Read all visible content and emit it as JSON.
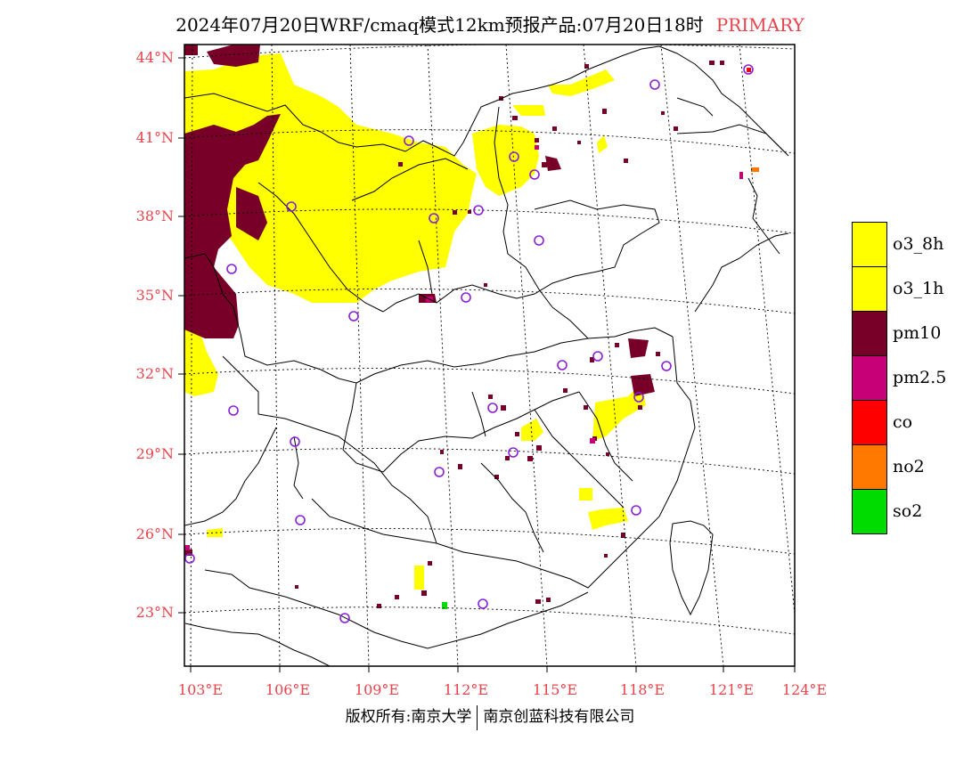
{
  "title": {
    "main": "2024年07月20日WRF/cmaq模式12km预报产品:07月20日18时",
    "tag": "PRIMARY"
  },
  "lat_labels": [
    "44°N",
    "41°N",
    "38°N",
    "35°N",
    "32°N",
    "29°N",
    "26°N",
    "23°N"
  ],
  "lon_labels": [
    "103°E",
    "106°E",
    "109°E",
    "112°E",
    "115°E",
    "118°E",
    "121°E",
    "124°E"
  ],
  "legend": [
    {
      "label": "o3_8h",
      "color": "#ffff00"
    },
    {
      "label": "o3_1h",
      "color": "#ffff00"
    },
    {
      "label": "pm10",
      "color": "#780028"
    },
    {
      "label": "pm2.5",
      "color": "#c80078"
    },
    {
      "label": "co",
      "color": "#ff0000"
    },
    {
      "label": "no2",
      "color": "#ff7800"
    },
    {
      "label": "so2",
      "color": "#00dc00"
    }
  ],
  "footer": {
    "left": "版权所有:南京大学",
    "right": "南京创蓝科技有限公司"
  }
}
